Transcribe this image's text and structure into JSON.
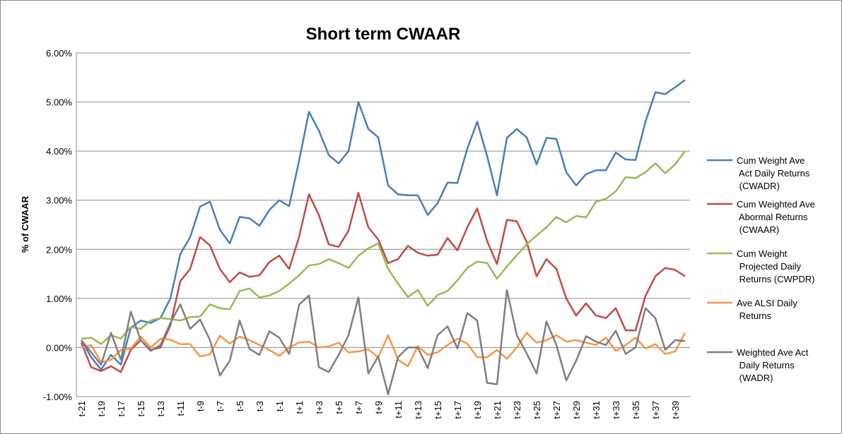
{
  "chart_data": {
    "type": "line",
    "title": "Short term CWAAR",
    "y_label": "% of CWAAR",
    "categories": [
      "t-21",
      null,
      "t-19",
      null,
      "t-17",
      null,
      "t-15",
      null,
      "t-13",
      null,
      "t-11",
      null,
      "t-9",
      null,
      "t-7",
      null,
      "t-5",
      null,
      "t-3",
      null,
      "t-1",
      null,
      "t+1",
      null,
      "t+3",
      null,
      "t+5",
      null,
      "t+7",
      null,
      "t+9",
      null,
      "t+11",
      null,
      "t+13",
      null,
      "t+15",
      null,
      "t+17",
      null,
      "t+19",
      null,
      "t+21",
      null,
      "t+23",
      null,
      "t+25",
      null,
      "t+27",
      null,
      "t+29",
      null,
      "t+31",
      null,
      "t+33",
      null,
      "t+35",
      null,
      "t+37",
      null,
      "t+39",
      null
    ],
    "series": [
      {
        "name": "Cum Weight Ave Act Daily Returns (CWADR)",
        "color": "#4a7ebb",
        "values": [
          0.15,
          -0.2,
          -0.45,
          -0.15,
          -0.35,
          0.4,
          0.55,
          0.5,
          0.6,
          1.0,
          1.9,
          2.25,
          2.87,
          2.97,
          2.4,
          2.12,
          2.66,
          2.63,
          2.48,
          2.8,
          3.0,
          2.88,
          3.8,
          4.8,
          4.42,
          3.92,
          3.75,
          4.0,
          5.0,
          4.45,
          4.28,
          3.3,
          3.12,
          3.1,
          3.1,
          2.7,
          2.94,
          3.36,
          3.35,
          4.05,
          4.6,
          3.9,
          3.1,
          4.27,
          4.45,
          4.28,
          3.73,
          4.27,
          4.25,
          3.57,
          3.3,
          3.53,
          3.61,
          3.61,
          3.97,
          3.83,
          3.82,
          4.6,
          5.2,
          5.16,
          5.3,
          5.45
        ]
      },
      {
        "name": "Cum Weighted Ave Abormal Returns (CWAAR)",
        "color": "#be4b48",
        "values": [
          0.1,
          -0.4,
          -0.48,
          -0.38,
          -0.5,
          -0.05,
          0.15,
          -0.05,
          0.0,
          0.45,
          1.35,
          1.6,
          2.25,
          2.08,
          1.6,
          1.33,
          1.53,
          1.44,
          1.47,
          1.74,
          1.87,
          1.6,
          2.25,
          3.12,
          2.7,
          2.1,
          2.05,
          2.38,
          3.15,
          2.45,
          2.2,
          1.72,
          1.8,
          2.07,
          1.93,
          1.87,
          1.89,
          2.23,
          1.98,
          2.45,
          2.83,
          2.17,
          1.7,
          2.6,
          2.57,
          2.15,
          1.45,
          1.8,
          1.6,
          1.0,
          0.65,
          0.9,
          0.65,
          0.6,
          0.8,
          0.35,
          0.35,
          1.05,
          1.45,
          1.62,
          1.58,
          1.45
        ]
      },
      {
        "name": "Cum Weight Projected Daily Returns (CWPDR)",
        "color": "#98b954",
        "values": [
          0.18,
          0.2,
          0.07,
          0.25,
          0.18,
          0.42,
          0.38,
          0.55,
          0.6,
          0.58,
          0.55,
          0.62,
          0.63,
          0.88,
          0.8,
          0.78,
          1.15,
          1.2,
          1.02,
          1.06,
          1.15,
          1.3,
          1.47,
          1.67,
          1.7,
          1.8,
          1.72,
          1.62,
          1.87,
          2.02,
          2.12,
          1.6,
          1.3,
          1.03,
          1.17,
          0.85,
          1.07,
          1.15,
          1.37,
          1.62,
          1.75,
          1.72,
          1.4,
          1.65,
          1.88,
          2.1,
          2.28,
          2.45,
          2.66,
          2.55,
          2.68,
          2.65,
          2.97,
          3.03,
          3.18,
          3.47,
          3.45,
          3.57,
          3.75,
          3.55,
          3.73,
          4.0
        ]
      },
      {
        "name": "Ave ALSI Daily Returns",
        "color": "#f79646",
        "values": [
          0.0,
          0.05,
          -0.3,
          -0.25,
          -0.05,
          -0.02,
          0.22,
          0.0,
          0.18,
          0.16,
          0.07,
          0.07,
          -0.18,
          -0.14,
          0.24,
          0.08,
          0.22,
          0.15,
          0.05,
          -0.05,
          -0.17,
          0.0,
          0.1,
          0.12,
          0.0,
          0.02,
          0.1,
          -0.1,
          -0.08,
          -0.04,
          -0.2,
          0.25,
          -0.25,
          -0.38,
          0.03,
          -0.15,
          -0.1,
          0.05,
          0.18,
          0.08,
          -0.2,
          -0.2,
          -0.05,
          -0.23,
          0.0,
          0.3,
          0.1,
          0.15,
          0.25,
          0.12,
          0.15,
          0.1,
          0.05,
          0.2,
          -0.07,
          0.05,
          0.2,
          -0.02,
          0.07,
          -0.13,
          -0.08,
          0.3
        ]
      },
      {
        "name": "Weighted Ave Act Daily Returns (WADR)",
        "color": "#7f7f7f",
        "values": [
          0.15,
          -0.1,
          -0.35,
          0.3,
          -0.25,
          0.73,
          0.15,
          -0.07,
          0.05,
          0.5,
          0.88,
          0.38,
          0.57,
          0.15,
          -0.57,
          -0.27,
          0.55,
          -0.03,
          -0.15,
          0.33,
          0.2,
          -0.13,
          0.87,
          1.06,
          -0.4,
          -0.5,
          -0.15,
          0.25,
          1.02,
          -0.53,
          -0.18,
          -0.95,
          -0.2,
          0.0,
          0.0,
          -0.42,
          0.25,
          0.43,
          -0.02,
          0.7,
          0.55,
          -0.72,
          -0.75,
          1.17,
          0.25,
          -0.12,
          -0.53,
          0.53,
          0.05,
          -0.67,
          -0.27,
          0.23,
          0.12,
          0.05,
          0.34,
          -0.13,
          0.0,
          0.8,
          0.6,
          -0.05,
          0.15,
          0.13
        ]
      }
    ],
    "ylim": [
      -1,
      6
    ],
    "yticks": [
      {
        "value": -1,
        "label": "-1.00%"
      },
      {
        "value": 0,
        "label": "0.00%"
      },
      {
        "value": 1,
        "label": "1.00%"
      },
      {
        "value": 2,
        "label": "2.00%"
      },
      {
        "value": 3,
        "label": "3.00%"
      },
      {
        "value": 4,
        "label": "4.00%"
      },
      {
        "value": 5,
        "label": "5.00%"
      },
      {
        "value": 6,
        "label": "6.00%"
      }
    ],
    "grid": true,
    "legend": "right"
  }
}
